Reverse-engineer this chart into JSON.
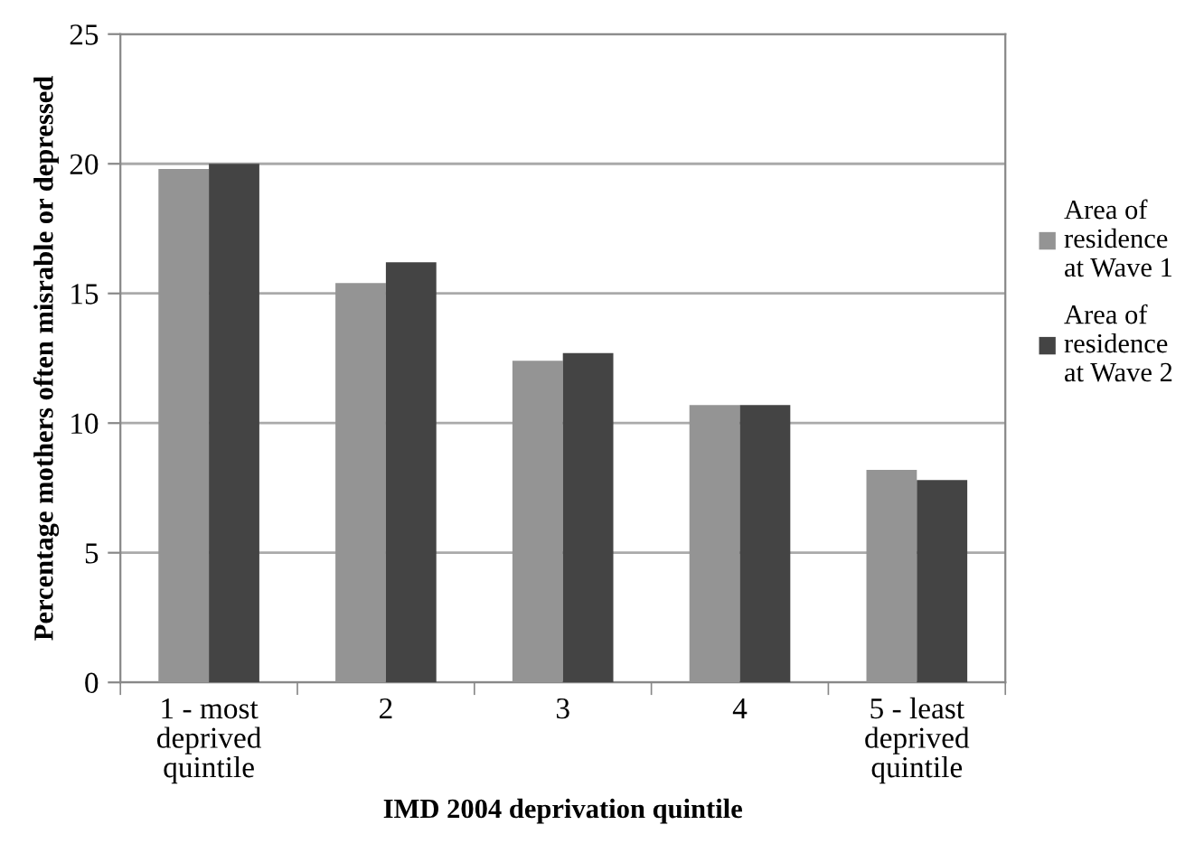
{
  "chart_data": {
    "type": "bar",
    "xlabel": "IMD 2004 deprivation quintile",
    "ylabel": "Percentage mothers often misrable or depressed",
    "categories": [
      "1 - most\ndeprived\nquintile",
      "2",
      "3",
      "4",
      "5 - least\ndeprived\nquintile"
    ],
    "series": [
      {
        "name": "Area of\nresidence\nat Wave 1",
        "color": "#949494",
        "values": [
          19.8,
          15.4,
          12.4,
          10.7,
          8.2
        ]
      },
      {
        "name": "Area of\nresidence\nat Wave 2",
        "color": "#444444",
        "values": [
          20.0,
          16.2,
          12.7,
          10.7,
          7.8
        ]
      }
    ],
    "ylim": [
      0,
      25
    ],
    "yticks": [
      0,
      5,
      10,
      15,
      20,
      25
    ],
    "grid": "y",
    "legend": "right"
  }
}
